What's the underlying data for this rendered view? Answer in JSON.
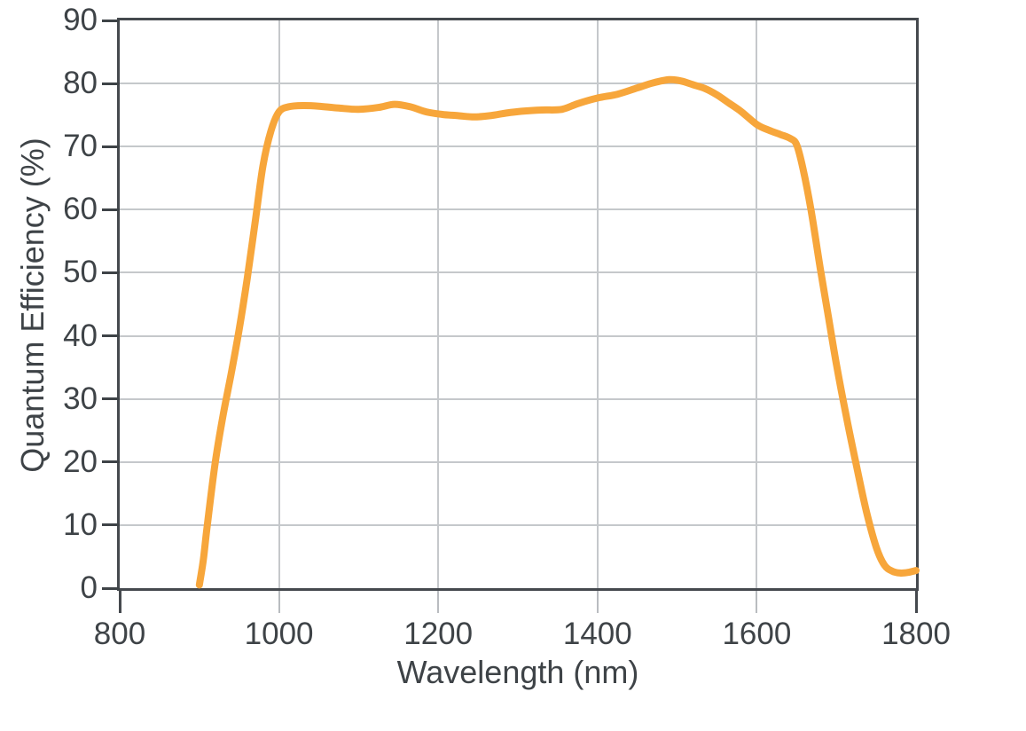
{
  "chart_data": {
    "type": "line",
    "title": "",
    "xlabel": "Wavelength (nm)",
    "ylabel": "Quantum Efficiency (%)",
    "xlim": [
      800,
      1800
    ],
    "ylim": [
      0,
      90
    ],
    "x_ticks": [
      800,
      1000,
      1200,
      1400,
      1600,
      1800
    ],
    "y_ticks": [
      0,
      10,
      20,
      30,
      40,
      50,
      60,
      70,
      80,
      90
    ],
    "grid": true,
    "legend": "none",
    "series": [
      {
        "name": "quantum-efficiency-curve",
        "color": "#F7A63B",
        "points": [
          [
            900,
            0.5
          ],
          [
            905,
            4.5
          ],
          [
            910,
            10
          ],
          [
            920,
            20
          ],
          [
            930,
            27.5
          ],
          [
            940,
            34
          ],
          [
            950,
            41
          ],
          [
            960,
            49
          ],
          [
            970,
            58
          ],
          [
            980,
            67
          ],
          [
            990,
            72.5
          ],
          [
            1000,
            75.5
          ],
          [
            1012,
            76.3
          ],
          [
            1030,
            76.5
          ],
          [
            1050,
            76.4
          ],
          [
            1075,
            76.1
          ],
          [
            1100,
            75.9
          ],
          [
            1125,
            76.2
          ],
          [
            1145,
            76.7
          ],
          [
            1165,
            76.3
          ],
          [
            1185,
            75.5
          ],
          [
            1205,
            75.1
          ],
          [
            1225,
            74.9
          ],
          [
            1245,
            74.7
          ],
          [
            1265,
            74.9
          ],
          [
            1285,
            75.3
          ],
          [
            1305,
            75.6
          ],
          [
            1330,
            75.8
          ],
          [
            1355,
            75.9
          ],
          [
            1375,
            76.8
          ],
          [
            1400,
            77.7
          ],
          [
            1425,
            78.3
          ],
          [
            1450,
            79.3
          ],
          [
            1470,
            80.1
          ],
          [
            1490,
            80.6
          ],
          [
            1505,
            80.4
          ],
          [
            1520,
            79.8
          ],
          [
            1535,
            79.2
          ],
          [
            1550,
            78.2
          ],
          [
            1565,
            76.9
          ],
          [
            1580,
            75.6
          ],
          [
            1600,
            73.5
          ],
          [
            1615,
            72.6
          ],
          [
            1630,
            71.9
          ],
          [
            1642,
            71.3
          ],
          [
            1650,
            70.3
          ],
          [
            1658,
            66.5
          ],
          [
            1668,
            60
          ],
          [
            1680,
            50.5
          ],
          [
            1690,
            43
          ],
          [
            1700,
            35.5
          ],
          [
            1712,
            27.5
          ],
          [
            1725,
            19.5
          ],
          [
            1738,
            12
          ],
          [
            1750,
            6.5
          ],
          [
            1760,
            3.7
          ],
          [
            1770,
            2.7
          ],
          [
            1780,
            2.4
          ],
          [
            1790,
            2.5
          ],
          [
            1800,
            2.8
          ]
        ]
      }
    ]
  },
  "colors": {
    "curve": "#F7A63B",
    "axis_frame": "#45494E",
    "grid": "#C5C8CB",
    "x_tick": "#B9BCC0",
    "text": "#3E4347",
    "background": "#FFFFFF"
  }
}
